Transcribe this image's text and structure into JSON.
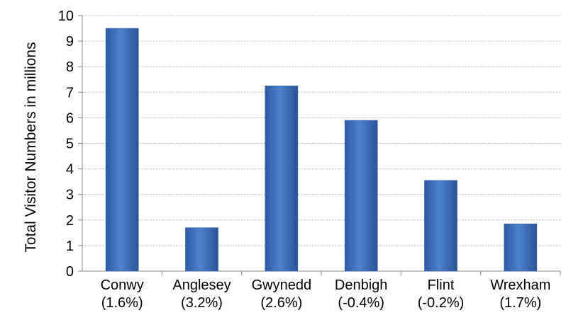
{
  "chart_data": {
    "type": "bar",
    "ylabel": "Total Visitor Numbers in millions",
    "ylim": [
      0,
      10
    ],
    "yticks": [
      "0",
      "1",
      "2",
      "3",
      "4",
      "5",
      "6",
      "7",
      "8",
      "9",
      "10"
    ],
    "grid": true,
    "categories": [
      {
        "name": "Conwy",
        "pct": "(1.6%)"
      },
      {
        "name": "Anglesey",
        "pct": "(3.2%)"
      },
      {
        "name": "Gwynedd",
        "pct": "(2.6%)"
      },
      {
        "name": "Denbigh",
        "pct": "(-0.4%)"
      },
      {
        "name": "Flint",
        "pct": "(-0.2%)"
      },
      {
        "name": "Wrexham",
        "pct": "(1.7%)"
      }
    ],
    "values": [
      9.5,
      1.7,
      7.25,
      5.9,
      3.55,
      1.85
    ],
    "bar_color": "#3f6fb8",
    "bar_color_dark": "#2a5396",
    "grid_color": "#b8b8b8"
  }
}
